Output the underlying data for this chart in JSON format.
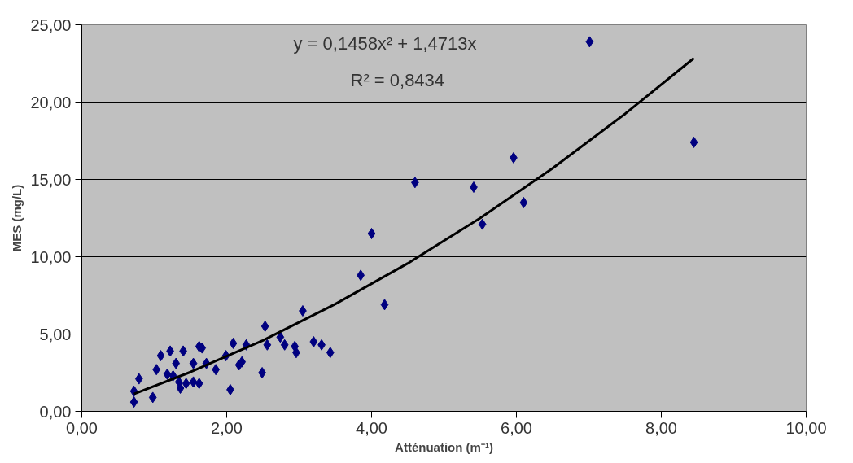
{
  "chart_data": {
    "type": "scatter",
    "xlabel": "Atténuation (m⁻¹)",
    "ylabel": "MES (mg/L)",
    "annotations": [
      "y = 0,1458x² + 1,4713x",
      "R² = 0,8434"
    ],
    "xlim": [
      0,
      10
    ],
    "ylim": [
      0,
      25
    ],
    "xticks": [
      {
        "value": 0,
        "label": "0,00"
      },
      {
        "value": 2,
        "label": "2,00"
      },
      {
        "value": 4,
        "label": "4,00"
      },
      {
        "value": 6,
        "label": "6,00"
      },
      {
        "value": 8,
        "label": "8,00"
      },
      {
        "value": 10,
        "label": "10,00"
      }
    ],
    "yticks": [
      {
        "value": 0,
        "label": "0,00"
      },
      {
        "value": 5,
        "label": "5,00"
      },
      {
        "value": 10,
        "label": "10,00"
      },
      {
        "value": 15,
        "label": "15,00"
      },
      {
        "value": 20,
        "label": "20,00"
      },
      {
        "value": 25,
        "label": "25,00"
      }
    ],
    "grid": "y",
    "marker": "diamond",
    "series": [
      {
        "color": "#000080",
        "x": [
          7.01,
          8.45,
          5.96,
          4.6,
          5.41,
          6.1,
          5.53,
          4.0,
          3.85,
          4.18,
          3.05,
          2.53,
          0.72,
          0.72,
          0.79,
          0.98,
          1.03,
          1.09,
          1.22,
          1.3,
          1.4,
          1.62,
          1.66,
          1.54,
          1.18,
          1.26,
          1.34,
          1.36,
          1.44,
          1.54,
          1.62,
          1.72,
          1.85,
          2.05,
          1.99,
          2.09,
          2.21,
          2.17,
          2.27,
          2.49,
          2.56,
          2.74,
          2.8,
          2.94,
          2.96,
          3.2,
          3.31,
          3.43
        ],
        "values": [
          23.9,
          17.4,
          16.4,
          14.8,
          14.5,
          13.5,
          12.1,
          11.5,
          8.8,
          6.9,
          6.5,
          5.5,
          0.6,
          1.3,
          2.1,
          0.9,
          2.7,
          3.6,
          3.9,
          3.1,
          3.9,
          4.2,
          4.1,
          3.1,
          2.4,
          2.3,
          1.9,
          1.5,
          1.8,
          1.9,
          1.8,
          3.1,
          2.7,
          1.4,
          3.6,
          4.4,
          3.2,
          3.0,
          4.3,
          2.5,
          4.3,
          4.8,
          4.3,
          4.2,
          3.8,
          4.5,
          4.3,
          3.8
        ]
      },
      {
        "type": "line",
        "color": "#000000",
        "marker": "none",
        "x": [
          0.72,
          1.5,
          2.5,
          3.5,
          4.5,
          5.5,
          6.5,
          7.5,
          8.45
        ],
        "values": [
          1.13,
          2.54,
          4.59,
          6.94,
          9.57,
          12.5,
          15.72,
          19.24,
          22.84
        ]
      }
    ]
  }
}
